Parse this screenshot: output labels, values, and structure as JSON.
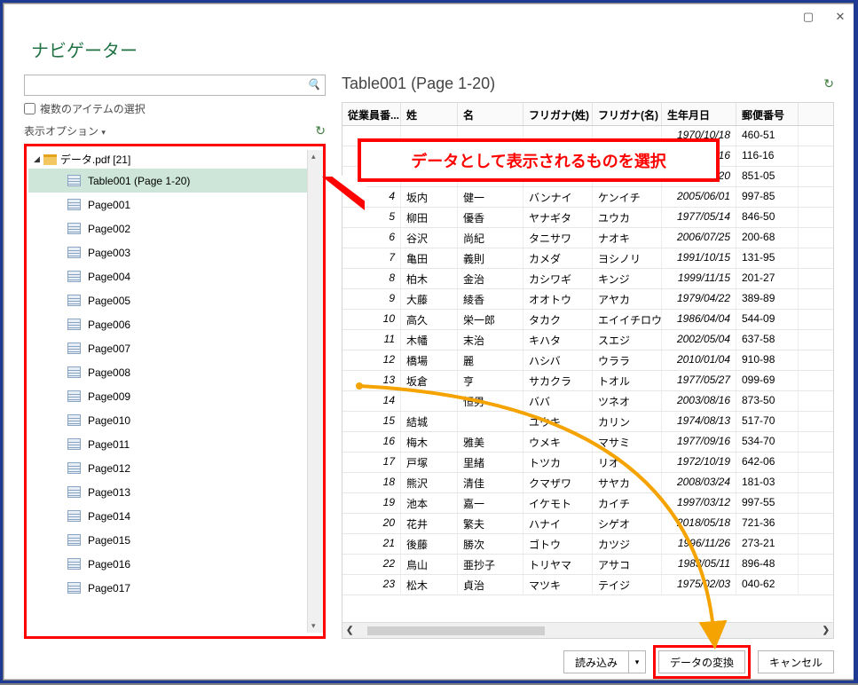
{
  "window": {
    "title": "ナビゲーター",
    "multi_select_label": "複数のアイテムの選択",
    "display_options_label": "表示オプション",
    "tree_root_label": "データ.pdf [21]",
    "tree_selected": "Table001 (Page 1-20)",
    "tree_items": [
      "Table001 (Page 1-20)",
      "Page001",
      "Page002",
      "Page003",
      "Page004",
      "Page005",
      "Page006",
      "Page007",
      "Page008",
      "Page009",
      "Page010",
      "Page011",
      "Page012",
      "Page013",
      "Page014",
      "Page015",
      "Page016",
      "Page017"
    ]
  },
  "preview": {
    "title": "Table001 (Page 1-20)",
    "columns": [
      "従業員番...",
      "姓",
      "名",
      "フリガナ(姓)",
      "フリガナ(名)",
      "生年月日",
      "郵便番号"
    ],
    "rows": [
      [
        "",
        "",
        "",
        "",
        "",
        "1970/10/18",
        "460-51"
      ],
      [
        "",
        "",
        "",
        "",
        "",
        "1982/08/16",
        "116-16"
      ],
      [
        "",
        "",
        "",
        "",
        "",
        "1988/03/20",
        "851-05"
      ],
      [
        "4",
        "坂内",
        "健一",
        "バンナイ",
        "ケンイチ",
        "2005/06/01",
        "997-85"
      ],
      [
        "5",
        "柳田",
        "優香",
        "ヤナギタ",
        "ユウカ",
        "1977/05/14",
        "846-50"
      ],
      [
        "6",
        "谷沢",
        "尚紀",
        "タニサワ",
        "ナオキ",
        "2006/07/25",
        "200-68"
      ],
      [
        "7",
        "亀田",
        "義則",
        "カメダ",
        "ヨシノリ",
        "1991/10/15",
        "131-95"
      ],
      [
        "8",
        "柏木",
        "金治",
        "カシワギ",
        "キンジ",
        "1999/11/15",
        "201-27"
      ],
      [
        "9",
        "大藤",
        "綾香",
        "オオトウ",
        "アヤカ",
        "1979/04/22",
        "389-89"
      ],
      [
        "10",
        "高久",
        "栄一郎",
        "タカク",
        "エイイチロウ",
        "1986/04/04",
        "544-09"
      ],
      [
        "11",
        "木幡",
        "末治",
        "キハタ",
        "スエジ",
        "2002/05/04",
        "637-58"
      ],
      [
        "12",
        "橋場",
        "麗",
        "ハシバ",
        "ウララ",
        "2010/01/04",
        "910-98"
      ],
      [
        "13",
        "坂倉",
        "亨",
        "サカクラ",
        "トオル",
        "1977/05/27",
        "099-69"
      ],
      [
        "14",
        "",
        "恒男",
        "ババ",
        "ツネオ",
        "2003/08/16",
        "873-50"
      ],
      [
        "15",
        "結城",
        "",
        "ユウキ",
        "カリン",
        "1974/08/13",
        "517-70"
      ],
      [
        "16",
        "梅木",
        "雅美",
        "ウメキ",
        "マサミ",
        "1977/09/16",
        "534-70"
      ],
      [
        "17",
        "戸塚",
        "里緒",
        "トツカ",
        "リオ",
        "1972/10/19",
        "642-06"
      ],
      [
        "18",
        "熊沢",
        "清佳",
        "クマザワ",
        "サヤカ",
        "2008/03/24",
        "181-03"
      ],
      [
        "19",
        "池本",
        "嘉一",
        "イケモト",
        "カイチ",
        "1997/03/12",
        "997-55"
      ],
      [
        "20",
        "花井",
        "繁夫",
        "ハナイ",
        "シゲオ",
        "2018/05/18",
        "721-36"
      ],
      [
        "21",
        "後藤",
        "勝次",
        "ゴトウ",
        "カツジ",
        "1996/11/26",
        "273-21"
      ],
      [
        "22",
        "鳥山",
        "亜抄子",
        "トリヤマ",
        "アサコ",
        "1983/05/11",
        "896-48"
      ],
      [
        "23",
        "松木",
        "貞治",
        "マツキ",
        "テイジ",
        "1975/02/03",
        "040-62"
      ]
    ]
  },
  "buttons": {
    "load": "読み込み",
    "transform": "データの変換",
    "cancel": "キャンセル"
  },
  "annotations": {
    "callout_text": "データとして表示されるものを選択",
    "arrow_color": "#f5a300",
    "red": "#ff0000",
    "outer_border_color": "#1f3a93"
  }
}
